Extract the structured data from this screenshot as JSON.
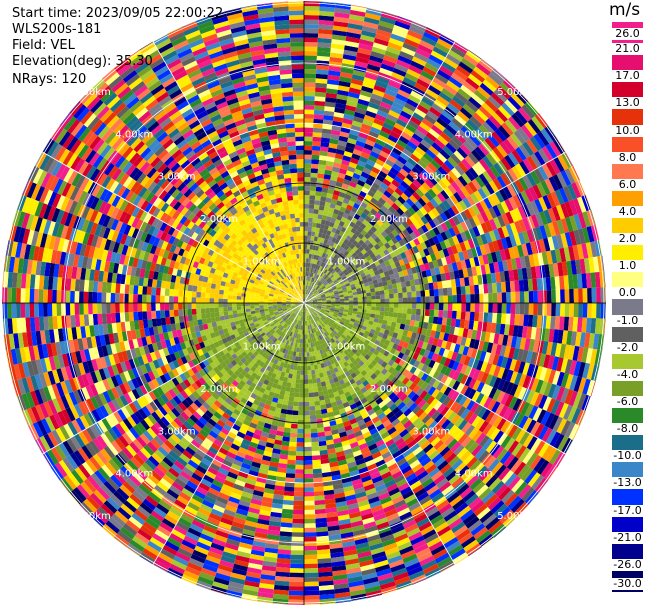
{
  "header": {
    "start_time": "Start time: 2023/09/05 22:00:22",
    "site": "WLS200s-181",
    "field": "Field: VEL",
    "elevation": "Elevation(deg): 35.30",
    "nrays": "NRays: 120"
  },
  "colorbar": {
    "unit": "m/s",
    "levels": [
      "26.0",
      "21.0",
      "17.0",
      "13.0",
      "10.0",
      "8.0",
      "6.0",
      "4.0",
      "2.0",
      "1.0",
      "0.0",
      "-1.0",
      "-2.0",
      "-4.0",
      "-6.0",
      "-8.0",
      "-10.0",
      "-13.0",
      "-17.0",
      "-21.0",
      "-26.0",
      "-30.0"
    ],
    "colors": [
      "#f21e8c",
      "#e60e6e",
      "#d2002a",
      "#e6320a",
      "#fa5028",
      "#ff7850",
      "#ffa000",
      "#ffcc00",
      "#ffee00",
      "#ffff80",
      "#7a7a8a",
      "#606060",
      "#a8c830",
      "#78a028",
      "#2a8a2a",
      "#1a6e8a",
      "#3a86c8",
      "#0032ff",
      "#0000c8",
      "#00008c",
      "#000064"
    ]
  },
  "chart_data": {
    "type": "polar-ppi",
    "field": "VEL",
    "units": "m/s",
    "n_rays": 120,
    "elevation_deg": 35.3,
    "range_rings_km": [
      1.0,
      2.0,
      3.0,
      4.0,
      5.0
    ],
    "ring_labels": [
      "1.00km",
      "2.00km",
      "3.00km",
      "4.00km",
      "5.00km"
    ],
    "inner_coherent_range_km": 2.0,
    "quadrant_velocity": {
      "north_west": 4.0,
      "north_east": -1.0,
      "south_east": -2.0,
      "south_west": -2.0
    },
    "grid": true
  }
}
